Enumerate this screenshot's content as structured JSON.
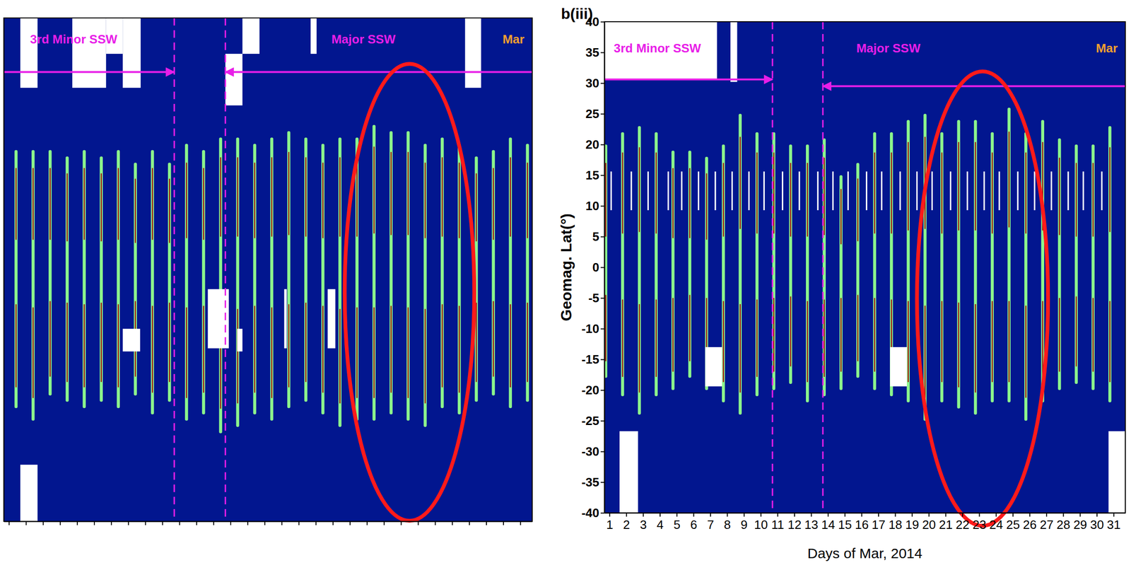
{
  "chart_data": [
    {
      "type": "heatmap",
      "xlim": [
        0.7,
        31.7
      ],
      "ylim": [
        -40,
        40
      ],
      "xticks": [
        1,
        2,
        3,
        4,
        5,
        6,
        7,
        8,
        9,
        10,
        11,
        12,
        13,
        14,
        15,
        16,
        17,
        18,
        19,
        20,
        21,
        22,
        23,
        24,
        25,
        26,
        27,
        28,
        29,
        30,
        31
      ],
      "yticks": [
        -40,
        -35,
        -30,
        -25,
        -20,
        -15,
        -10,
        -5,
        0,
        5,
        10,
        15,
        20,
        25,
        30,
        35,
        40
      ],
      "tick_labels": false,
      "streaks": {
        "x": [
          1.42,
          2.42,
          3.42,
          4.42,
          5.42,
          6.42,
          7.42,
          8.42,
          9.42,
          10.42,
          11.42,
          12.42,
          13.42,
          14.42,
          15.42,
          16.42,
          17.42,
          18.42,
          19.42,
          20.42,
          21.42,
          22.42,
          23.42,
          24.42,
          25.42,
          26.42,
          27.42,
          28.42,
          29.42,
          30.42,
          31.42
        ],
        "lat_min": [
          -22,
          -24,
          -20,
          -21,
          -22,
          -21,
          -22,
          -20,
          -23,
          -21,
          -24,
          -23,
          -26,
          -25,
          -23,
          -24,
          -22,
          -21,
          -23,
          -25,
          -24,
          -24,
          -23,
          -24,
          -25,
          -22,
          -23,
          -21,
          -20,
          -22,
          -21
        ],
        "lat_max": [
          19,
          19,
          19,
          18,
          19,
          18,
          19,
          17,
          19,
          17,
          20,
          19,
          21,
          21,
          20,
          21,
          22,
          21,
          20,
          21,
          21,
          23,
          22,
          22,
          20,
          21,
          20,
          18,
          19,
          21,
          20
        ]
      },
      "gaps": [
        {
          "x": [
            1.67,
            2.68
          ],
          "lat": [
            28.9,
            40
          ]
        },
        {
          "x": [
            4.72,
            6.7
          ],
          "lat": [
            28.9,
            40
          ]
        },
        {
          "x": [
            6.7,
            7.68
          ],
          "lat": [
            34.3,
            40
          ]
        },
        {
          "x": [
            7.68,
            8.73
          ],
          "lat": [
            28.9,
            40
          ]
        },
        {
          "x": [
            14.7,
            15.7
          ],
          "lat": [
            34.3,
            40
          ]
        },
        {
          "x": [
            13.7,
            14.7
          ],
          "lat": [
            26.1,
            34.3
          ]
        },
        {
          "x": [
            18.7,
            19.05
          ],
          "lat": [
            34.3,
            40
          ]
        },
        {
          "x": [
            27.76,
            28.7
          ],
          "lat": [
            28.9,
            40
          ]
        },
        {
          "x": [
            7.68,
            8.7
          ],
          "lat": [
            -13,
            -9.4
          ]
        },
        {
          "x": [
            12.67,
            13.9
          ],
          "lat": [
            -12.5,
            -3.1
          ]
        },
        {
          "x": [
            19.7,
            20.15
          ],
          "lat": [
            -12.5,
            -3.1
          ]
        },
        {
          "x": [
            17.15,
            17.3
          ],
          "lat": [
            -12.5,
            -3.1
          ]
        },
        {
          "x": [
            14.4,
            14.7
          ],
          "lat": [
            -13,
            -9.4
          ]
        },
        {
          "x": [
            1.67,
            2.68
          ],
          "lat": [
            -40,
            -31
          ]
        }
      ],
      "event_lines": [
        10.7,
        13.7
      ],
      "arrows": [
        {
          "from": 0.7,
          "to": 10.7,
          "lat": 31.4
        },
        {
          "from": 31.7,
          "to": 13.7,
          "lat": 31.4
        }
      ],
      "highlight": {
        "x": [
          20.7,
          28.3
        ],
        "lat": [
          -39.9,
          32.7
        ]
      },
      "annotations": [
        {
          "text": "3rd Minor SSW",
          "x": 4.8,
          "y": 36.5,
          "color": "#e81ee8"
        },
        {
          "text": "Major SSW",
          "x": 21.8,
          "y": 36.5,
          "color": "#e81ee8"
        },
        {
          "text": "Mar",
          "x": 30.6,
          "y": 36.5,
          "color": "#f0a030"
        }
      ]
    },
    {
      "type": "heatmap",
      "panel_label": "b(iii)",
      "x_label": "Days of Mar, 2014",
      "y_label": "Geomag. Lat(°)",
      "xlim": [
        0.7,
        31.7
      ],
      "ylim": [
        -40,
        40
      ],
      "xticks": [
        1,
        2,
        3,
        4,
        5,
        6,
        7,
        8,
        9,
        10,
        11,
        12,
        13,
        14,
        15,
        16,
        17,
        18,
        19,
        20,
        21,
        22,
        23,
        24,
        25,
        26,
        27,
        28,
        29,
        30,
        31
      ],
      "yticks": [
        -40,
        -35,
        -30,
        -25,
        -20,
        -15,
        -10,
        -5,
        0,
        5,
        10,
        15,
        20,
        25,
        30,
        35,
        40
      ],
      "streaks": {
        "x": [
          0.78,
          1.78,
          2.78,
          3.78,
          4.78,
          5.78,
          6.78,
          7.78,
          8.78,
          9.78,
          10.78,
          11.78,
          12.78,
          13.78,
          14.78,
          15.78,
          16.78,
          17.78,
          18.78,
          19.78,
          20.78,
          21.78,
          22.78,
          23.78,
          24.78,
          25.78,
          26.78,
          27.78,
          28.78,
          29.78,
          30.78
        ],
        "lat_min": [
          -18,
          -21,
          -24,
          -21,
          -20,
          -18,
          -20,
          -22,
          -24,
          -21,
          -20,
          -19,
          -22,
          -21,
          -20,
          -18,
          -20,
          -21,
          -22,
          -25,
          -22,
          -23,
          -24,
          -22,
          -22,
          -25,
          -22,
          -20,
          -19,
          -20,
          -22
        ],
        "lat_max": [
          20,
          22,
          23,
          22,
          19,
          19,
          18,
          20,
          25,
          22,
          22,
          20,
          20,
          21,
          15,
          17,
          22,
          22,
          24,
          25,
          22,
          24,
          24,
          22,
          26,
          22,
          24,
          21,
          20,
          20,
          23
        ]
      },
      "strips": {
        "x": [
          1.1,
          2.3,
          3.3,
          4.5,
          5.3,
          6.3,
          7.3,
          8.3,
          9.3,
          10.2,
          11.3,
          12.3,
          13.4,
          14.3,
          15.2,
          16.3,
          17.2,
          18.3,
          19.3,
          20.2,
          21.3,
          22.3,
          23.3,
          24.2,
          25.3,
          26.3,
          27.3,
          28.3,
          29.2,
          30.3
        ],
        "lat": [
          9.3,
          15.6
        ]
      },
      "gaps": [
        {
          "x": [
            0.7,
            7.4
          ],
          "lat": [
            30.6,
            40
          ]
        },
        {
          "x": [
            8.2,
            8.6
          ],
          "lat": [
            30.2,
            40
          ]
        },
        {
          "x": [
            6.7,
            7.7
          ],
          "lat": [
            -19.4,
            -13
          ]
        },
        {
          "x": [
            17.7,
            18.7
          ],
          "lat": [
            -19.4,
            -13
          ]
        },
        {
          "x": [
            1.6,
            2.7
          ],
          "lat": [
            -40,
            -26.7
          ]
        },
        {
          "x": [
            30.7,
            31.7
          ],
          "lat": [
            -40,
            -26.7
          ]
        }
      ],
      "event_lines": [
        10.7,
        13.7
      ],
      "arrows": [
        {
          "from": 0.7,
          "to": 10.7,
          "lat": 30.6
        },
        {
          "from": 31.7,
          "to": 13.7,
          "lat": 29.5
        }
      ],
      "highlight": {
        "x": [
          19.3,
          27.1
        ],
        "lat": [
          -42.1,
          31.9
        ]
      },
      "annotations": [
        {
          "text": "3rd Minor SSW",
          "x": 3.85,
          "y": 35.5,
          "color": "#e81ee8"
        },
        {
          "text": "Major SSW",
          "x": 17.6,
          "y": 35.5,
          "color": "#e81ee8"
        },
        {
          "text": "Mar",
          "x": 30.6,
          "y": 35.5,
          "color": "#f0a030"
        }
      ]
    }
  ]
}
